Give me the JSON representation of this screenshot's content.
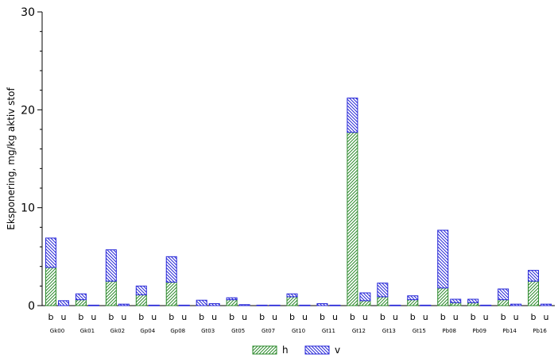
{
  "chart_data": {
    "type": "bar",
    "stacked": true,
    "ylabel": "Eksponering,  mg/kg aktiv stof",
    "ylim": [
      0,
      30
    ],
    "yticks": [
      0,
      10,
      20,
      30
    ],
    "groups": [
      "Gk00",
      "Gk01",
      "Gk02",
      "Gp04",
      "Gp08",
      "Gt03",
      "Gt05",
      "Gt07",
      "Gt10",
      "Gt11",
      "Gt12",
      "Gt13",
      "Gt15",
      "Pb08",
      "Pb09",
      "Pb14",
      "Pb16"
    ],
    "subcategories": [
      "b",
      "u"
    ],
    "series": [
      {
        "name": "h",
        "color": "#2e8b2e",
        "pattern": "hatch-forward",
        "values": [
          [
            3.9,
            0.0
          ],
          [
            0.6,
            0.0
          ],
          [
            2.5,
            0.0
          ],
          [
            1.1,
            0.0
          ],
          [
            2.4,
            0.0
          ],
          [
            0.0,
            0.0
          ],
          [
            0.6,
            0.0
          ],
          [
            0.0,
            0.0
          ],
          [
            0.9,
            0.0
          ],
          [
            0.0,
            0.0
          ],
          [
            17.7,
            0.5
          ],
          [
            0.9,
            0.0
          ],
          [
            0.6,
            0.0
          ],
          [
            1.8,
            0.3
          ],
          [
            0.3,
            0.0
          ],
          [
            0.6,
            0.0
          ],
          [
            2.5,
            0.0
          ]
        ]
      },
      {
        "name": "v",
        "color": "#2828d8",
        "pattern": "hatch-back",
        "values": [
          [
            3.0,
            0.5
          ],
          [
            0.6,
            0.05
          ],
          [
            3.2,
            0.15
          ],
          [
            0.9,
            0.05
          ],
          [
            2.6,
            0.05
          ],
          [
            0.55,
            0.2
          ],
          [
            0.2,
            0.1
          ],
          [
            0.05,
            0.05
          ],
          [
            0.3,
            0.05
          ],
          [
            0.2,
            0.05
          ],
          [
            3.5,
            0.8
          ],
          [
            1.4,
            0.05
          ],
          [
            0.4,
            0.05
          ],
          [
            5.9,
            0.35
          ],
          [
            0.35,
            0.05
          ],
          [
            1.1,
            0.15
          ],
          [
            1.1,
            0.15
          ]
        ]
      }
    ],
    "legend": {
      "position": "bottom-center",
      "entries": [
        "h",
        "v"
      ]
    },
    "grid": false
  }
}
